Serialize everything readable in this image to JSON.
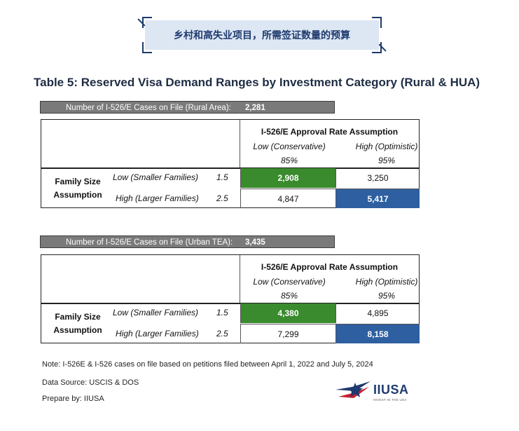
{
  "banner": {
    "text": "乡村和高失业项目，所需签证数量的预算"
  },
  "title": "Table 5: Reserved Visa Demand Ranges by Investment Category (Rural & HUA)",
  "tables": [
    {
      "cases_label": "Number of I-526/E Cases on File (Rural Area):",
      "cases_value": "2,281",
      "header_title": "I-526/E Approval Rate Assumption",
      "col_low": "Low (Conservative)",
      "col_high": "High (Optimistic)",
      "pct_low": "85%",
      "pct_high": "95%",
      "family_label_1": "Family Size",
      "family_label_2": "Assumption",
      "rows": [
        {
          "label": "Low (Smaller Families)",
          "factor": "1.5",
          "low": "2,908",
          "high": "3,250"
        },
        {
          "label": "High (Larger Families)",
          "factor": "2.5",
          "low": "4,847",
          "high": "5,417"
        }
      ]
    },
    {
      "cases_label": "Number of I-526/E Cases on File (Urban TEA):",
      "cases_value": "3,435",
      "header_title": "I-526/E Approval Rate Assumption",
      "col_low": "Low (Conservative)",
      "col_high": "High (Optimistic)",
      "pct_low": "85%",
      "pct_high": "95%",
      "family_label_1": "Family Size",
      "family_label_2": "Assumption",
      "rows": [
        {
          "label": "Low (Smaller Families)",
          "factor": "1.5",
          "low": "4,380",
          "high": "4,895"
        },
        {
          "label": "High (Larger Families)",
          "factor": "2.5",
          "low": "7,299",
          "high": "8,158"
        }
      ]
    }
  ],
  "notes": {
    "note": "Note: I-526E & I-526 cases on file based on petitions filed between April 1, 2022 and July 5, 2024",
    "source": "Data Source: USCIS & DOS",
    "prepared": "Prepare by: IIUSA"
  },
  "logo": {
    "name": "IIUSA",
    "tagline": "INVEST IN THE USA"
  },
  "colors": {
    "green_cell": "#3a8a2e",
    "blue_cell": "#2e5fa1",
    "bar_gray": "#7a7a7a",
    "banner_bg": "#dde6f3"
  }
}
